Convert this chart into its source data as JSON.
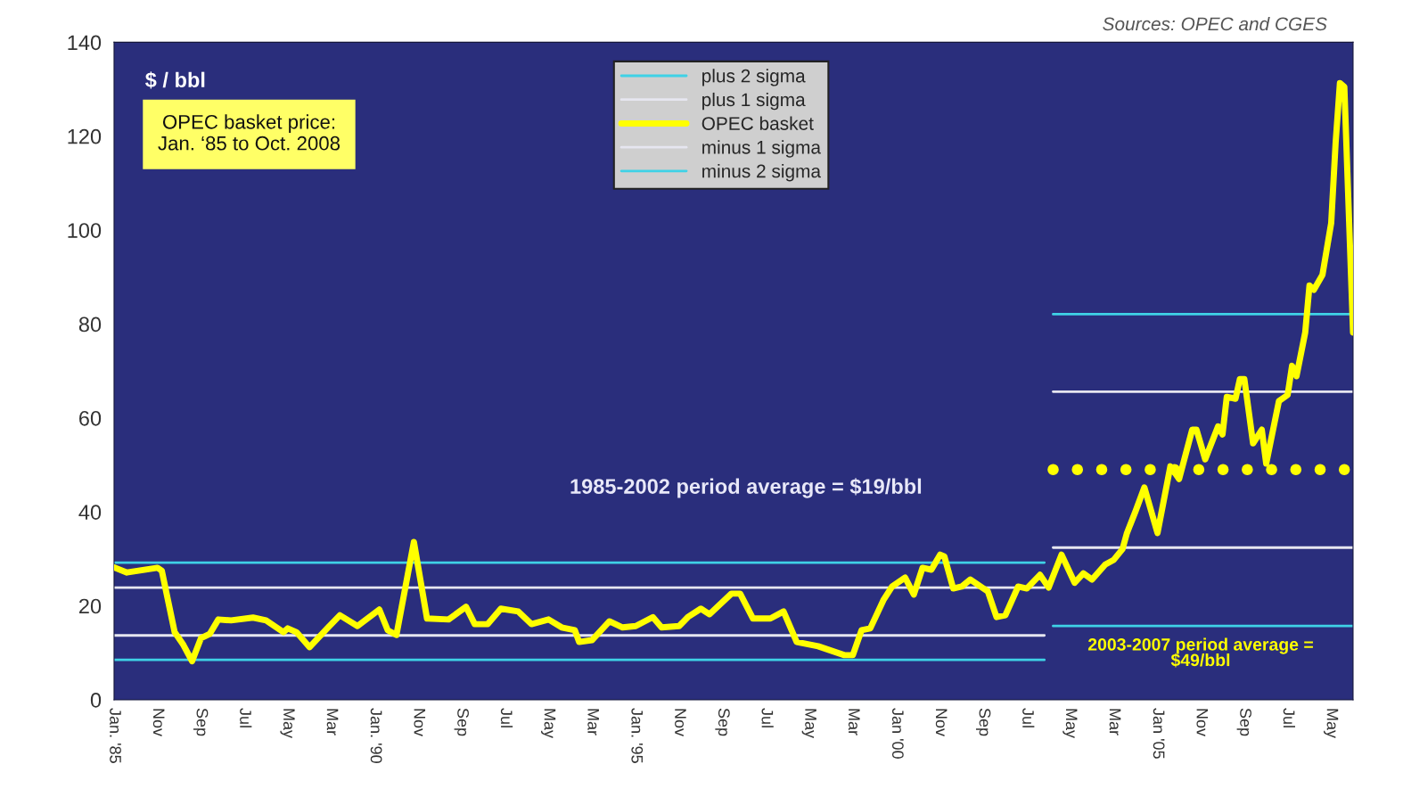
{
  "chart_data": {
    "type": "line",
    "title": "OPEC basket price:\nJan. ‘85 to Oct. 2008",
    "ylabel": "$ / bbl",
    "annotations": [
      "Sources: OPEC and CGES",
      "1985-2002 period average = $19/bbl",
      "2003-2007 period average =\n$49/bbl"
    ],
    "xlim": [
      "1985-01",
      "2008-10"
    ],
    "xticks": [
      {
        "value": "1985-01",
        "label": "Jan. '85"
      },
      {
        "value": "1985-11",
        "label": "Nov"
      },
      {
        "value": "1986-09",
        "label": "Sep"
      },
      {
        "value": "1987-07",
        "label": "Jul"
      },
      {
        "value": "1988-05",
        "label": "May"
      },
      {
        "value": "1989-03",
        "label": "Mar"
      },
      {
        "value": "1990-01",
        "label": "Jan. '90"
      },
      {
        "value": "1990-11",
        "label": "Nov"
      },
      {
        "value": "1991-09",
        "label": "Sep"
      },
      {
        "value": "1992-07",
        "label": "Jul"
      },
      {
        "value": "1993-05",
        "label": "May"
      },
      {
        "value": "1994-03",
        "label": "Mar"
      },
      {
        "value": "1995-01",
        "label": "Jan. '95"
      },
      {
        "value": "1995-11",
        "label": "Nov"
      },
      {
        "value": "1996-09",
        "label": "Sep"
      },
      {
        "value": "1997-07",
        "label": "Jul"
      },
      {
        "value": "1998-05",
        "label": "May"
      },
      {
        "value": "1999-03",
        "label": "Mar"
      },
      {
        "value": "2000-01",
        "label": "Jan '00"
      },
      {
        "value": "2000-11",
        "label": "Nov"
      },
      {
        "value": "2001-09",
        "label": "Sep"
      },
      {
        "value": "2002-07",
        "label": "Jul"
      },
      {
        "value": "2003-05",
        "label": "May"
      },
      {
        "value": "2004-03",
        "label": "Mar"
      },
      {
        "value": "2005-01",
        "label": "Jan '05"
      },
      {
        "value": "2005-11",
        "label": "Nov"
      },
      {
        "value": "2006-09",
        "label": "Sep"
      },
      {
        "value": "2007-07",
        "label": "Jul"
      },
      {
        "value": "2008-05",
        "label": "May"
      }
    ],
    "ylim": [
      0,
      140
    ],
    "yticks": [
      0,
      20,
      40,
      60,
      80,
      100,
      120,
      140
    ],
    "legend": "top center",
    "series": [
      {
        "name": "plus 2 sigma",
        "color": "#3fd2e6",
        "x": [
          "1985-01",
          "2002-11",
          "2002-12",
          "2003-01",
          "2008-10"
        ],
        "values": [
          29.2,
          29.2,
          null,
          82.1,
          82.1
        ]
      },
      {
        "name": "plus 1 sigma",
        "color": "#e6e6f0",
        "x": [
          "1985-01",
          "2002-11",
          "2002-12",
          "2003-01",
          "2008-10"
        ],
        "values": [
          23.9,
          23.9,
          null,
          65.6,
          65.6
        ]
      },
      {
        "name": "OPEC basket",
        "color": "#ffff00",
        "x": [
          "1985-01",
          "1985-04",
          "1985-11",
          "1985-12",
          "1986-03",
          "1986-05",
          "1986-07",
          "1986-09",
          "1986-11",
          "1987-01",
          "1987-04",
          "1987-09",
          "1987-12",
          "1988-04",
          "1988-05",
          "1988-07",
          "1988-10",
          "1989-02",
          "1989-05",
          "1989-09",
          "1990-02",
          "1990-04",
          "1990-06",
          "1990-10",
          "1991-01",
          "1991-06",
          "1991-10",
          "1991-12",
          "1992-03",
          "1992-06",
          "1992-10",
          "1993-01",
          "1993-05",
          "1993-08",
          "1993-11",
          "1993-12",
          "1994-03",
          "1994-07",
          "1994-10",
          "1995-01",
          "1995-05",
          "1995-07",
          "1995-11",
          "1996-01",
          "1996-04",
          "1996-06",
          "1996-11",
          "1997-01",
          "1997-04",
          "1997-08",
          "1997-11",
          "1998-02",
          "1998-07",
          "1999-01",
          "1999-03",
          "1999-05",
          "1999-07",
          "1999-10",
          "1999-12",
          "2000-03",
          "2000-05",
          "2000-07",
          "2000-09",
          "2000-11",
          "2000-12",
          "2001-02",
          "2001-04",
          "2001-06",
          "2001-09",
          "2001-10",
          "2001-12",
          "2002-02",
          "2002-05",
          "2002-07",
          "2002-10",
          "2002-12",
          "2003-03",
          "2003-06",
          "2003-08",
          "2003-10",
          "2004-01",
          "2004-03",
          "2004-05",
          "2004-06",
          "2004-08",
          "2004-10",
          "2005-01",
          "2005-04",
          "2005-06",
          "2005-09",
          "2005-10",
          "2005-12",
          "2006-03",
          "2006-04",
          "2006-05",
          "2006-07",
          "2006-08",
          "2006-09",
          "2006-11",
          "2007-01",
          "2007-02",
          "2007-05",
          "2007-07",
          "2007-08",
          "2007-09",
          "2007-11",
          "2007-12",
          "2008-01",
          "2008-03",
          "2008-05",
          "2008-06",
          "2008-07",
          "2008-08",
          "2008-10"
        ],
        "values": [
          28.2,
          27.1,
          28.1,
          27.5,
          14.4,
          11.7,
          8.2,
          13.1,
          14.0,
          17.1,
          16.9,
          17.5,
          16.9,
          14.4,
          15.2,
          14.4,
          11.2,
          15.2,
          18.0,
          15.7,
          19.2,
          14.8,
          13.8,
          33.6,
          17.3,
          17.1,
          19.8,
          16.1,
          16.1,
          19.4,
          18.8,
          16.1,
          17.1,
          15.4,
          14.8,
          12.3,
          12.7,
          16.7,
          15.4,
          15.7,
          17.6,
          15.4,
          15.7,
          17.6,
          19.4,
          18.2,
          22.6,
          22.6,
          17.3,
          17.3,
          18.8,
          12.3,
          11.4,
          9.5,
          9.5,
          14.8,
          15.2,
          21.2,
          24.1,
          26.0,
          22.4,
          28.1,
          27.7,
          30.9,
          30.5,
          23.7,
          24.1,
          25.6,
          23.7,
          23.1,
          17.6,
          18.0,
          24.1,
          23.7,
          26.6,
          23.9,
          30.9,
          24.9,
          26.9,
          25.6,
          28.8,
          29.8,
          32.1,
          35.5,
          40.2,
          45.2,
          35.5,
          49.7,
          47.0,
          57.5,
          57.5,
          51.2,
          58.2,
          56.5,
          64.5,
          64.1,
          68.3,
          68.3,
          54.6,
          57.5,
          50.3,
          63.6,
          64.9,
          71.1,
          68.9,
          78.2,
          88.2,
          87.3,
          90.5,
          101.5,
          118.6,
          131.3,
          130.5,
          78.2
        ]
      },
      {
        "name": "minus 1 sigma",
        "color": "#e6e6f0",
        "x": [
          "1985-01",
          "2002-11",
          "2002-12",
          "2003-01",
          "2008-10"
        ],
        "values": [
          13.7,
          13.7,
          null,
          32.4,
          32.4
        ]
      },
      {
        "name": "minus 2 sigma",
        "color": "#3fd2e6",
        "x": [
          "1985-01",
          "2002-11",
          "2002-12",
          "2003-01",
          "2008-10"
        ],
        "values": [
          8.5,
          8.5,
          null,
          15.7,
          15.7
        ]
      },
      {
        "color": "#ffff00",
        "line_style": "dotted",
        "x": [
          "2003-01",
          "2008-08"
        ],
        "values": [
          49,
          49
        ]
      }
    ]
  }
}
